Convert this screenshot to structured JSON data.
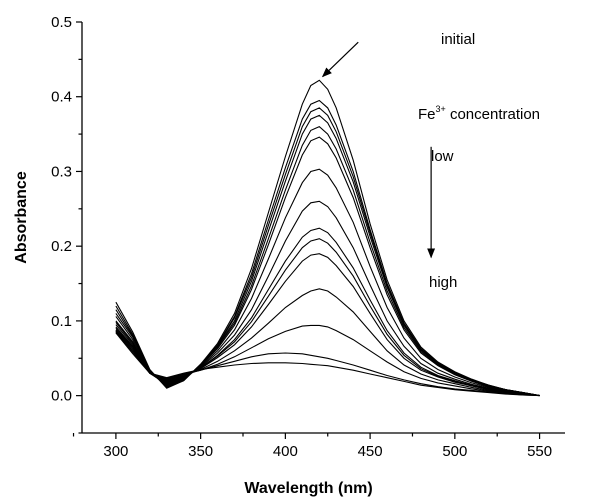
{
  "chart_data": {
    "type": "line",
    "title": "",
    "xlabel": "Wavelength (nm)",
    "ylabel": "Absorbance",
    "xlim": [
      280,
      565
    ],
    "ylim": [
      -0.05,
      0.5
    ],
    "xticks": [
      300,
      350,
      400,
      450,
      500,
      550
    ],
    "yticks": [
      0.0,
      0.1,
      0.2,
      0.3,
      0.4,
      0.5
    ],
    "xtick_labels": [
      "300",
      "350",
      "400",
      "450",
      "500",
      "550"
    ],
    "ytick_labels": [
      "0.0",
      "0.1",
      "0.2",
      "0.3",
      "0.4",
      "0.5"
    ],
    "grid": false,
    "legend": "none",
    "annotations": {
      "initial": "initial",
      "fe_base": "Fe",
      "fe_sup": "3+",
      "fe_rest": " concentration",
      "low": "low",
      "high": "high"
    },
    "series": [
      {
        "x": [
          300,
          310,
          320,
          330,
          340,
          350,
          360,
          370,
          380,
          390,
          400,
          410,
          415,
          420,
          425,
          430,
          440,
          450,
          460,
          470,
          480,
          490,
          500,
          510,
          520,
          530,
          540,
          550
        ],
        "values": [
          0.125,
          0.085,
          0.035,
          0.01,
          0.02,
          0.042,
          0.07,
          0.11,
          0.17,
          0.245,
          0.32,
          0.39,
          0.415,
          0.422,
          0.41,
          0.385,
          0.315,
          0.23,
          0.155,
          0.1,
          0.065,
          0.045,
          0.032,
          0.022,
          0.014,
          0.008,
          0.004,
          0.0
        ]
      },
      {
        "x": [
          300,
          310,
          320,
          330,
          340,
          350,
          360,
          370,
          380,
          390,
          400,
          410,
          415,
          420,
          425,
          430,
          440,
          450,
          460,
          470,
          480,
          490,
          500,
          510,
          520,
          530,
          540,
          550
        ],
        "values": [
          0.12,
          0.082,
          0.034,
          0.011,
          0.02,
          0.042,
          0.068,
          0.106,
          0.163,
          0.235,
          0.305,
          0.37,
          0.39,
          0.395,
          0.385,
          0.362,
          0.3,
          0.222,
          0.15,
          0.097,
          0.063,
          0.044,
          0.031,
          0.021,
          0.014,
          0.008,
          0.004,
          0.0
        ]
      },
      {
        "x": [
          300,
          310,
          320,
          330,
          340,
          350,
          360,
          370,
          380,
          390,
          400,
          410,
          415,
          420,
          425,
          430,
          440,
          450,
          460,
          470,
          480,
          490,
          500,
          510,
          520,
          530,
          540,
          550
        ],
        "values": [
          0.115,
          0.08,
          0.033,
          0.012,
          0.021,
          0.041,
          0.067,
          0.104,
          0.158,
          0.228,
          0.296,
          0.36,
          0.38,
          0.385,
          0.375,
          0.353,
          0.293,
          0.218,
          0.148,
          0.096,
          0.062,
          0.043,
          0.03,
          0.021,
          0.013,
          0.008,
          0.004,
          0.0
        ]
      },
      {
        "x": [
          300,
          310,
          320,
          330,
          340,
          350,
          360,
          370,
          380,
          390,
          400,
          410,
          415,
          420,
          425,
          430,
          440,
          450,
          460,
          470,
          480,
          490,
          500,
          510,
          520,
          530,
          540,
          550
        ],
        "values": [
          0.11,
          0.078,
          0.032,
          0.013,
          0.021,
          0.041,
          0.066,
          0.1,
          0.153,
          0.22,
          0.287,
          0.35,
          0.37,
          0.375,
          0.365,
          0.344,
          0.286,
          0.213,
          0.145,
          0.094,
          0.061,
          0.042,
          0.03,
          0.02,
          0.013,
          0.008,
          0.004,
          0.0
        ]
      },
      {
        "x": [
          300,
          310,
          320,
          330,
          340,
          350,
          360,
          370,
          380,
          390,
          400,
          410,
          415,
          420,
          425,
          430,
          440,
          450,
          460,
          470,
          480,
          490,
          500,
          510,
          520,
          530,
          540,
          550
        ],
        "values": [
          0.106,
          0.075,
          0.031,
          0.014,
          0.022,
          0.04,
          0.065,
          0.097,
          0.147,
          0.21,
          0.275,
          0.335,
          0.355,
          0.36,
          0.35,
          0.33,
          0.275,
          0.205,
          0.14,
          0.091,
          0.059,
          0.041,
          0.029,
          0.02,
          0.013,
          0.008,
          0.004,
          0.0
        ]
      },
      {
        "x": [
          300,
          310,
          320,
          330,
          340,
          350,
          360,
          370,
          380,
          390,
          400,
          410,
          415,
          420,
          425,
          430,
          440,
          450,
          460,
          470,
          480,
          490,
          500,
          510,
          520,
          530,
          540,
          550
        ],
        "values": [
          0.1,
          0.072,
          0.03,
          0.015,
          0.022,
          0.04,
          0.063,
          0.094,
          0.142,
          0.202,
          0.265,
          0.322,
          0.341,
          0.346,
          0.337,
          0.318,
          0.265,
          0.198,
          0.135,
          0.088,
          0.057,
          0.04,
          0.028,
          0.019,
          0.012,
          0.007,
          0.003,
          0.0
        ]
      },
      {
        "x": [
          300,
          310,
          320,
          330,
          340,
          350,
          360,
          370,
          380,
          390,
          400,
          410,
          415,
          420,
          425,
          430,
          440,
          450,
          460,
          470,
          480,
          490,
          500,
          510,
          520,
          530,
          540,
          550
        ],
        "values": [
          0.098,
          0.07,
          0.03,
          0.016,
          0.023,
          0.039,
          0.06,
          0.088,
          0.13,
          0.183,
          0.238,
          0.285,
          0.3,
          0.303,
          0.295,
          0.278,
          0.232,
          0.173,
          0.118,
          0.077,
          0.05,
          0.035,
          0.025,
          0.017,
          0.011,
          0.006,
          0.003,
          0.0
        ]
      },
      {
        "x": [
          300,
          310,
          320,
          330,
          340,
          350,
          360,
          370,
          380,
          390,
          400,
          410,
          415,
          420,
          425,
          430,
          440,
          450,
          460,
          470,
          480,
          490,
          500,
          510,
          520,
          530,
          540,
          550
        ],
        "values": [
          0.095,
          0.068,
          0.03,
          0.017,
          0.024,
          0.038,
          0.057,
          0.081,
          0.115,
          0.16,
          0.207,
          0.247,
          0.258,
          0.26,
          0.253,
          0.238,
          0.198,
          0.148,
          0.1,
          0.066,
          0.043,
          0.03,
          0.022,
          0.015,
          0.01,
          0.006,
          0.003,
          0.0
        ]
      },
      {
        "x": [
          300,
          310,
          320,
          330,
          340,
          350,
          360,
          370,
          380,
          390,
          400,
          410,
          415,
          420,
          425,
          430,
          440,
          450,
          460,
          470,
          480,
          490,
          500,
          510,
          520,
          530,
          540,
          550
        ],
        "values": [
          0.092,
          0.066,
          0.03,
          0.018,
          0.025,
          0.037,
          0.054,
          0.075,
          0.104,
          0.142,
          0.18,
          0.212,
          0.221,
          0.224,
          0.218,
          0.205,
          0.171,
          0.128,
          0.087,
          0.057,
          0.038,
          0.027,
          0.02,
          0.014,
          0.009,
          0.005,
          0.003,
          0.0
        ]
      },
      {
        "x": [
          300,
          310,
          320,
          330,
          340,
          350,
          360,
          370,
          380,
          390,
          400,
          410,
          415,
          420,
          425,
          430,
          440,
          450,
          460,
          470,
          480,
          490,
          500,
          510,
          520,
          530,
          540,
          550
        ],
        "values": [
          0.09,
          0.065,
          0.03,
          0.019,
          0.025,
          0.037,
          0.053,
          0.072,
          0.099,
          0.133,
          0.168,
          0.198,
          0.207,
          0.21,
          0.204,
          0.192,
          0.16,
          0.12,
          0.082,
          0.054,
          0.036,
          0.026,
          0.019,
          0.013,
          0.009,
          0.005,
          0.003,
          0.0
        ]
      },
      {
        "x": [
          300,
          310,
          320,
          330,
          340,
          350,
          360,
          370,
          380,
          390,
          400,
          410,
          415,
          420,
          425,
          430,
          440,
          450,
          460,
          470,
          480,
          490,
          500,
          510,
          520,
          530,
          540,
          550
        ],
        "values": [
          0.088,
          0.064,
          0.03,
          0.02,
          0.026,
          0.036,
          0.051,
          0.068,
          0.092,
          0.122,
          0.153,
          0.18,
          0.188,
          0.19,
          0.185,
          0.174,
          0.146,
          0.11,
          0.075,
          0.05,
          0.034,
          0.025,
          0.018,
          0.013,
          0.008,
          0.005,
          0.002,
          0.0
        ]
      },
      {
        "x": [
          300,
          310,
          320,
          330,
          340,
          350,
          360,
          370,
          380,
          390,
          400,
          410,
          415,
          420,
          425,
          430,
          440,
          450,
          460,
          470,
          480,
          490,
          500,
          510,
          520,
          530,
          540,
          550
        ],
        "values": [
          0.087,
          0.062,
          0.03,
          0.021,
          0.027,
          0.035,
          0.046,
          0.06,
          0.077,
          0.097,
          0.118,
          0.134,
          0.14,
          0.143,
          0.14,
          0.132,
          0.112,
          0.086,
          0.06,
          0.041,
          0.029,
          0.021,
          0.016,
          0.011,
          0.007,
          0.004,
          0.002,
          0.0
        ]
      },
      {
        "x": [
          300,
          310,
          320,
          330,
          340,
          350,
          360,
          370,
          380,
          390,
          400,
          410,
          415,
          420,
          425,
          430,
          440,
          450,
          460,
          470,
          480,
          490,
          500,
          510,
          520,
          530,
          540,
          550
        ],
        "values": [
          0.086,
          0.06,
          0.03,
          0.022,
          0.028,
          0.034,
          0.042,
          0.052,
          0.064,
          0.076,
          0.086,
          0.093,
          0.094,
          0.094,
          0.092,
          0.087,
          0.075,
          0.06,
          0.045,
          0.032,
          0.023,
          0.017,
          0.013,
          0.009,
          0.006,
          0.004,
          0.002,
          0.0
        ]
      },
      {
        "x": [
          300,
          310,
          320,
          330,
          340,
          350,
          360,
          370,
          380,
          390,
          400,
          410,
          415,
          420,
          425,
          430,
          440,
          450,
          460,
          470,
          480,
          490,
          500,
          510,
          520,
          530,
          540,
          550
        ],
        "values": [
          0.085,
          0.058,
          0.03,
          0.023,
          0.029,
          0.034,
          0.04,
          0.046,
          0.052,
          0.056,
          0.057,
          0.056,
          0.054,
          0.052,
          0.05,
          0.047,
          0.041,
          0.034,
          0.027,
          0.021,
          0.016,
          0.012,
          0.009,
          0.007,
          0.005,
          0.003,
          0.001,
          0.0
        ]
      },
      {
        "x": [
          300,
          310,
          320,
          330,
          340,
          350,
          360,
          370,
          380,
          390,
          400,
          410,
          415,
          420,
          425,
          430,
          440,
          450,
          460,
          470,
          480,
          490,
          500,
          510,
          520,
          530,
          540,
          550
        ],
        "values": [
          0.084,
          0.056,
          0.03,
          0.024,
          0.03,
          0.035,
          0.038,
          0.041,
          0.043,
          0.044,
          0.044,
          0.043,
          0.042,
          0.041,
          0.04,
          0.038,
          0.034,
          0.029,
          0.024,
          0.019,
          0.014,
          0.011,
          0.008,
          0.006,
          0.004,
          0.002,
          0.001,
          0.0
        ]
      }
    ],
    "arrows": [
      {
        "from": [
          443,
          0.473
        ],
        "to": [
          422,
          0.427
        ]
      },
      {
        "from": [
          486,
          0.333
        ],
        "to": [
          486,
          0.185
        ]
      }
    ]
  }
}
